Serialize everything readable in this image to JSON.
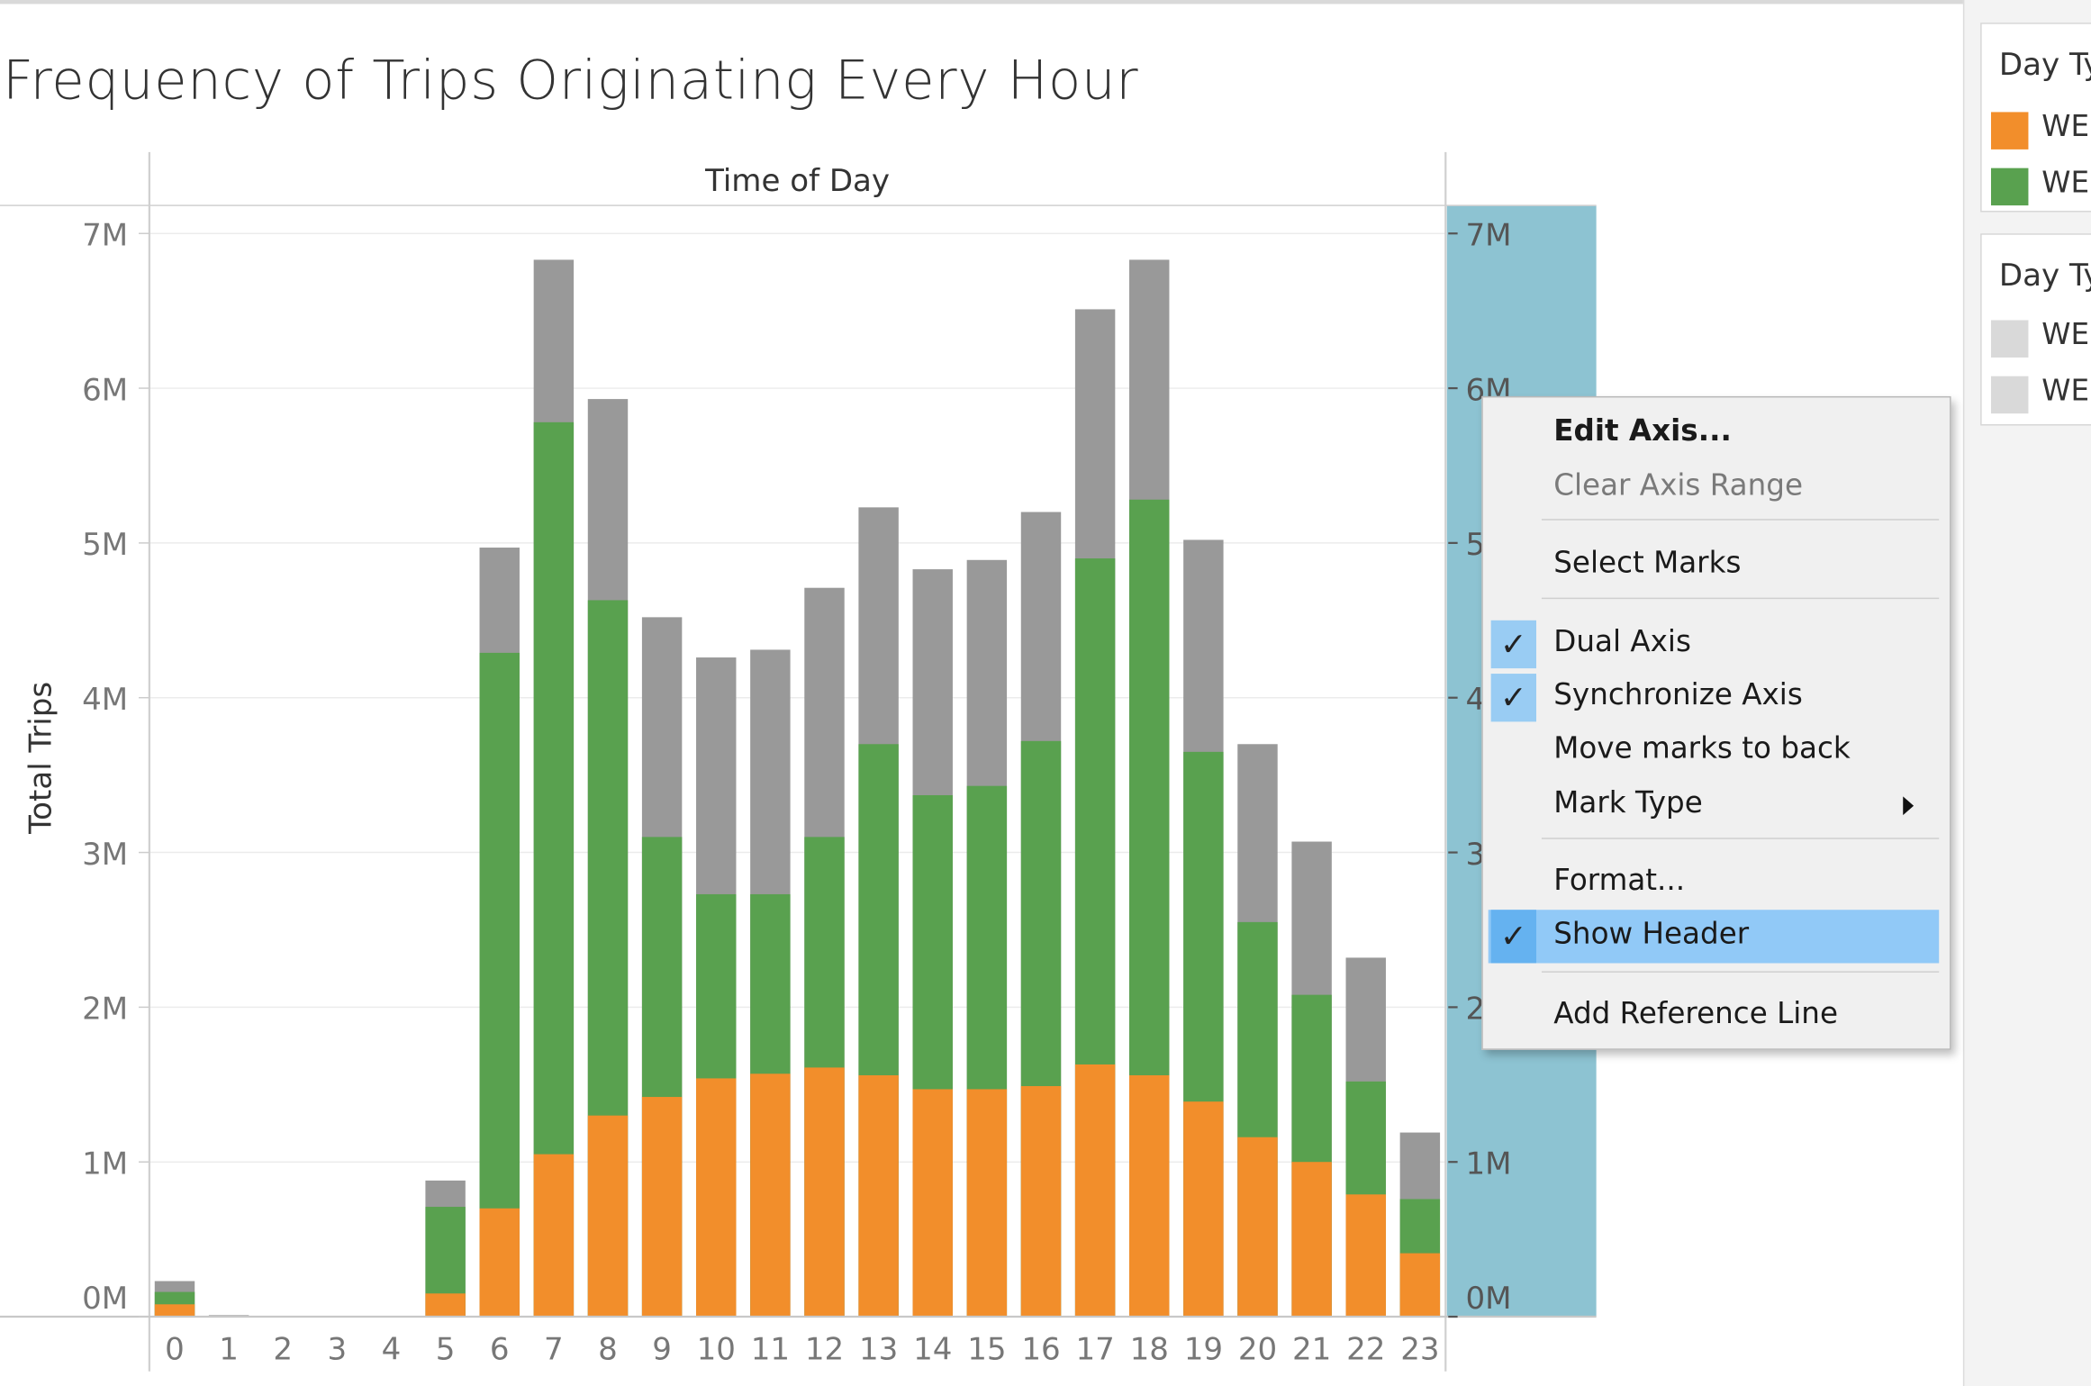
{
  "chart_data": {
    "type": "bar",
    "title": "Frequency of Trips Originating Every Hour",
    "header": "Time of Day",
    "ylabel": "Total Trips",
    "ylim": [
      0,
      7
    ],
    "y_ticks": [
      "0M",
      "1M",
      "2M",
      "3M",
      "4M",
      "5M",
      "6M",
      "7M"
    ],
    "categories": [
      "0",
      "1",
      "2",
      "3",
      "4",
      "5",
      "6",
      "7",
      "8",
      "9",
      "10",
      "11",
      "12",
      "13",
      "14",
      "15",
      "16",
      "17",
      "18",
      "19",
      "20",
      "21",
      "22",
      "23"
    ],
    "unit": "millions of trips",
    "series": [
      {
        "color": "#f28e2b",
        "values": [
          0.08,
          0,
          0,
          0,
          0,
          0.15,
          0.7,
          1.05,
          1.3,
          1.42,
          1.54,
          1.57,
          1.61,
          1.56,
          1.47,
          1.47,
          1.49,
          1.63,
          1.56,
          1.39,
          1.16,
          1.0,
          0.79,
          0.41
        ]
      },
      {
        "color": "#59a14f",
        "values": [
          0.16,
          0,
          0,
          0,
          0,
          0.71,
          4.29,
          5.78,
          4.63,
          3.1,
          2.73,
          2.73,
          3.1,
          3.7,
          3.37,
          3.43,
          3.72,
          4.9,
          5.28,
          3.65,
          2.55,
          2.08,
          1.52,
          0.76
        ]
      },
      {
        "color": "#999999",
        "values": [
          0.23,
          0.01,
          0,
          0,
          0,
          0.88,
          4.97,
          6.83,
          5.93,
          4.52,
          4.26,
          4.31,
          4.71,
          5.23,
          4.83,
          4.89,
          5.2,
          6.51,
          6.83,
          5.02,
          3.7,
          3.07,
          2.32,
          1.19
        ]
      }
    ],
    "secondary_axis": {
      "ticks": [
        "0M",
        "1M",
        "2",
        "3",
        "4",
        "5",
        "6M",
        "7M"
      ],
      "background": "#8dc3d2"
    },
    "grid": true
  },
  "legends": [
    {
      "title": "Day Ty",
      "items": [
        {
          "label": "WE",
          "color": "#f28e2b"
        },
        {
          "label": "WE",
          "color": "#59a14f"
        }
      ]
    },
    {
      "title": "Day Ty",
      "items": [
        {
          "label": "WE",
          "color": "#d9d9d9"
        },
        {
          "label": "WE",
          "color": "#d9d9d9"
        }
      ]
    }
  ],
  "context_menu": {
    "items": [
      {
        "label": "Edit Axis...",
        "bold": true
      },
      {
        "label": "Clear Axis Range",
        "disabled": true
      },
      {
        "label": "Select Marks"
      },
      {
        "label": "Dual Axis",
        "checked": true
      },
      {
        "label": "Synchronize Axis",
        "checked": true
      },
      {
        "label": "Move marks to back"
      },
      {
        "label": "Mark Type",
        "submenu": true
      },
      {
        "label": "Format..."
      },
      {
        "label": "Show Header",
        "checked": true,
        "highlighted": true
      },
      {
        "label": "Add Reference Line"
      }
    ]
  }
}
